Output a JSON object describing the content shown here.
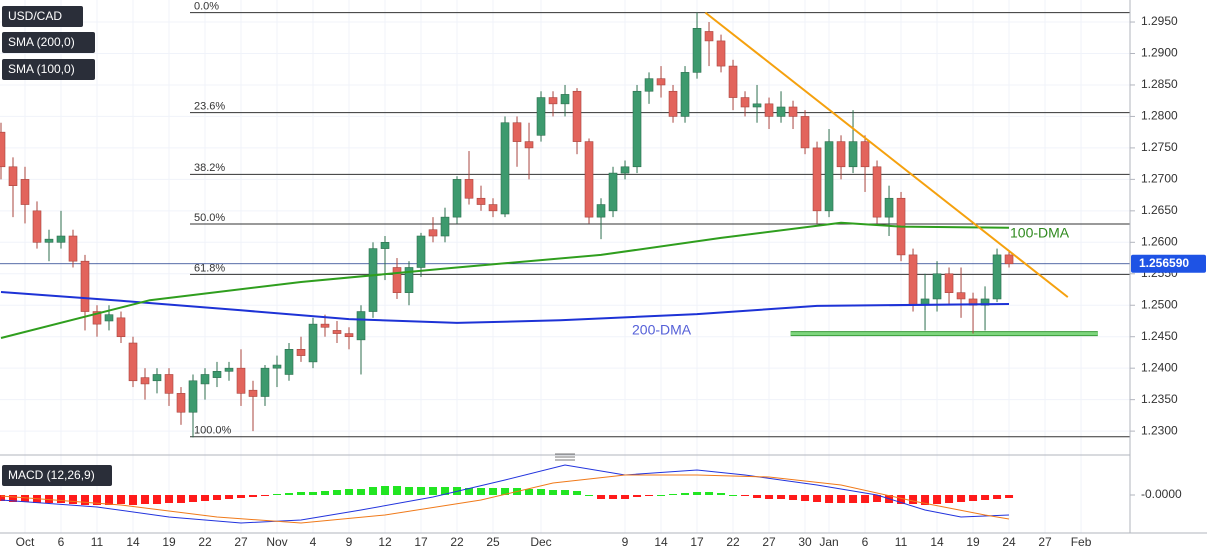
{
  "chart_data": [
    {
      "type": "candlestick",
      "categories": [
        null,
        null,
        "Oct",
        null,
        null,
        "6",
        null,
        null,
        "11",
        null,
        null,
        "14",
        null,
        null,
        "19",
        null,
        null,
        "22",
        null,
        null,
        "27",
        null,
        null,
        "Nov",
        null,
        null,
        "4",
        null,
        null,
        "9",
        null,
        null,
        "12",
        null,
        null,
        "17",
        null,
        null,
        "22",
        null,
        null,
        "25",
        null,
        null,
        null,
        "Dec",
        null,
        null,
        null,
        null,
        null,
        null,
        "9",
        null,
        null,
        "14",
        null,
        null,
        "17",
        null,
        null,
        "22",
        null,
        null,
        "27",
        null,
        null,
        "30",
        null,
        "Jan",
        null,
        null,
        "6",
        null,
        null,
        "11",
        null,
        null,
        "14",
        null,
        null,
        "19",
        null,
        null,
        "24",
        null,
        null,
        "27",
        null,
        null,
        "Feb"
      ],
      "series": [
        {
          "name": "USD/CAD",
          "up_color": "#3d9a6e",
          "down_color": "#e2645c",
          "open": [
            1.2775,
            1.272,
            1.27,
            1.265,
            1.26,
            1.26,
            1.261,
            1.257,
            1.249,
            1.2475,
            1.248,
            1.244,
            1.2385,
            1.238,
            1.239,
            1.236,
            1.233,
            1.2375,
            1.2385,
            1.2395,
            1.24,
            1.2365,
            1.2355,
            1.24,
            1.239,
            1.243,
            1.241,
            1.247,
            1.246,
            1.2455,
            1.2445,
            1.249,
            1.259,
            1.256,
            1.252,
            1.256,
            1.262,
            1.261,
            1.264,
            1.27,
            1.267,
            1.266,
            1.2645,
            1.279,
            1.276,
            1.277,
            1.283,
            1.282,
            1.284,
            1.276,
            1.264,
            1.265,
            1.271,
            1.272,
            1.284,
            1.286,
            1.284,
            1.28,
            1.287,
            1.2935,
            1.292,
            1.288,
            1.283,
            1.2815,
            1.282,
            1.28,
            1.2815,
            1.28,
            1.275,
            1.265,
            1.276,
            1.272,
            1.276,
            1.272,
            1.264,
            1.267,
            1.258,
            1.25,
            1.251,
            1.255,
            1.252,
            1.251,
            1.25,
            1.251,
            1.258,
            null,
            null,
            null,
            null,
            null,
            null
          ],
          "high": [
            1.279,
            1.2735,
            1.272,
            1.2665,
            1.262,
            1.265,
            1.262,
            1.258,
            1.25,
            1.25,
            1.249,
            1.245,
            1.24,
            1.24,
            1.24,
            1.237,
            1.239,
            1.24,
            1.241,
            1.241,
            1.243,
            1.238,
            1.2405,
            1.242,
            1.244,
            1.245,
            1.248,
            1.2485,
            1.2475,
            1.2465,
            1.25,
            1.26,
            1.261,
            1.2575,
            1.257,
            1.2615,
            1.264,
            1.2655,
            1.2705,
            1.2745,
            1.269,
            1.267,
            1.28,
            1.28,
            1.279,
            1.284,
            1.284,
            1.285,
            1.2845,
            1.2765,
            1.267,
            1.272,
            1.273,
            1.285,
            1.287,
            1.288,
            1.285,
            1.288,
            1.2965,
            1.295,
            1.293,
            1.289,
            1.284,
            1.285,
            1.283,
            1.284,
            1.2825,
            1.281,
            1.276,
            1.278,
            1.277,
            1.281,
            1.277,
            1.273,
            1.269,
            1.268,
            1.259,
            1.255,
            1.257,
            1.256,
            1.256,
            1.252,
            1.253,
            1.259,
            1.2585,
            null,
            null,
            null,
            null,
            null,
            null
          ],
          "low": [
            1.27,
            1.264,
            1.263,
            1.259,
            1.257,
            1.259,
            1.256,
            1.246,
            1.245,
            1.246,
            1.244,
            1.237,
            1.235,
            1.236,
            1.234,
            1.231,
            1.229,
            1.235,
            1.237,
            1.238,
            1.234,
            1.23,
            1.234,
            1.237,
            1.238,
            1.241,
            1.24,
            1.245,
            1.244,
            1.243,
            1.239,
            1.248,
            1.254,
            1.251,
            1.25,
            1.2545,
            1.26,
            1.26,
            1.263,
            1.266,
            1.265,
            1.264,
            1.264,
            1.272,
            1.27,
            1.276,
            1.28,
            1.28,
            1.274,
            1.263,
            1.2605,
            1.264,
            1.27,
            1.271,
            1.282,
            1.283,
            1.279,
            1.279,
            1.286,
            1.288,
            1.287,
            1.281,
            1.28,
            1.279,
            1.278,
            1.279,
            1.278,
            1.274,
            1.263,
            1.264,
            1.27,
            1.271,
            1.268,
            1.263,
            1.261,
            1.257,
            1.249,
            1.246,
            1.249,
            1.25,
            1.248,
            1.2455,
            1.246,
            1.2505,
            1.256,
            null,
            null,
            null,
            null,
            null,
            null
          ],
          "close": [
            1.272,
            1.269,
            1.266,
            1.26,
            1.2605,
            1.261,
            1.257,
            1.249,
            1.247,
            1.2485,
            1.245,
            1.238,
            1.2375,
            1.239,
            1.236,
            1.233,
            1.238,
            1.239,
            1.2395,
            1.24,
            1.236,
            1.2355,
            1.24,
            1.2405,
            1.243,
            1.242,
            1.247,
            1.2465,
            1.2455,
            1.245,
            1.249,
            1.259,
            1.26,
            1.252,
            1.256,
            1.261,
            1.261,
            1.264,
            1.27,
            1.267,
            1.266,
            1.265,
            1.279,
            1.276,
            1.275,
            1.283,
            1.282,
            1.2835,
            1.276,
            1.264,
            1.266,
            1.271,
            1.272,
            1.284,
            1.286,
            1.285,
            1.28,
            1.287,
            1.294,
            1.292,
            1.288,
            1.283,
            1.2815,
            1.282,
            1.28,
            1.2815,
            1.28,
            1.275,
            1.265,
            1.276,
            1.272,
            1.276,
            1.272,
            1.264,
            1.267,
            1.258,
            1.25,
            1.251,
            1.255,
            1.252,
            1.251,
            1.25,
            1.251,
            1.258,
            1.25659,
            null,
            null,
            null,
            null,
            null,
            null
          ]
        }
      ],
      "lines": [
        {
          "name": "SMA (200,0)",
          "color": "#1d32d6",
          "x": [
            0,
            10,
            20,
            29,
            38,
            46.6,
            58,
            68,
            84
          ],
          "values": [
            1.2521,
            1.2507,
            1.2492,
            1.2478,
            1.2472,
            1.2476,
            1.2486,
            1.2499,
            1.2502
          ]
        },
        {
          "name": "SMA (100,0)",
          "color": "#2f9e1e",
          "x": [
            0,
            12.4,
            25,
            37.4,
            50,
            60,
            70,
            75,
            84
          ],
          "values": [
            1.2448,
            1.2508,
            1.2537,
            1.2559,
            1.258,
            1.2607,
            1.2631,
            1.2625,
            1.2623
          ]
        }
      ],
      "annotations": [
        {
          "text": "100-DMA",
          "color": "#2f8a1e"
        },
        {
          "text": "200-DMA",
          "color": "#5560d8"
        }
      ],
      "trendline": {
        "color": "#f5a10e",
        "x": [
          58.7,
          88.9
        ],
        "values": [
          1.2965,
          1.2513
        ]
      },
      "support": {
        "color": "#7ed67e",
        "x": [
          65.8,
          91.4
        ],
        "values": [
          1.2455,
          1.2455
        ]
      },
      "fib_levels": [
        {
          "label": "0.0%",
          "value": 1.2965
        },
        {
          "label": "23.6%",
          "value": 1.2806
        },
        {
          "label": "38.2%",
          "value": 1.2708
        },
        {
          "label": "50.0%",
          "value": 1.2629
        },
        {
          "label": "61.8%",
          "value": 1.2549
        },
        {
          "label": "100.0%",
          "value": 1.2291
        }
      ],
      "last_price": {
        "value": 1.25659,
        "label": "1.256590"
      },
      "xlim": [
        -0.083,
        94.08
      ],
      "ylim": [
        1.227,
        1.2985
      ],
      "yticks": [
        {
          "value": 1.23,
          "label": "1.2300"
        },
        {
          "value": 1.235,
          "label": "1.2350"
        },
        {
          "value": 1.24,
          "label": "1.2400"
        },
        {
          "value": 1.245,
          "label": "1.2450"
        },
        {
          "value": 1.25,
          "label": "1.2500"
        },
        {
          "value": 1.255,
          "label": "1.2550"
        },
        {
          "value": 1.26,
          "label": "1.2600"
        },
        {
          "value": 1.265,
          "label": "1.2650"
        },
        {
          "value": 1.27,
          "label": "1.2700"
        },
        {
          "value": 1.275,
          "label": "1.2750"
        },
        {
          "value": 1.28,
          "label": "1.2800"
        },
        {
          "value": 1.285,
          "label": "1.2850"
        },
        {
          "value": 1.29,
          "label": "1.2900"
        },
        {
          "value": 1.295,
          "label": "1.2950"
        }
      ],
      "grid": true
    },
    {
      "type": "macd",
      "title": "MACD (12,26,9)",
      "up_color": "#22e522",
      "down_color": "#ff1a1a",
      "histogram": [
        -0.0006,
        -0.0007,
        -0.0007,
        -0.0008,
        -0.0008,
        -0.0008,
        -0.0009,
        -0.001,
        -0.001,
        -0.001,
        -0.0009,
        -0.001,
        -0.0009,
        -0.0009,
        -0.0008,
        -0.0008,
        -0.0007,
        -0.0006,
        -0.0005,
        -0.0004,
        -0.0003,
        -0.0002,
        -0.0001,
        0.0001,
        0.0002,
        0.0003,
        0.0003,
        0.0004,
        0.0005,
        0.0006,
        0.0006,
        0.0008,
        0.0009,
        0.0009,
        0.0008,
        0.0008,
        0.0008,
        0.0008,
        0.0008,
        0.0007,
        0.0007,
        0.0007,
        0.0007,
        0.0007,
        0.0006,
        0.0006,
        0.0005,
        0.0005,
        0.0004,
        0.0,
        -0.0004,
        -0.0004,
        -0.0004,
        -0.0002,
        -0.0001,
        0.0,
        0.0001,
        0.0002,
        0.0003,
        0.0003,
        0.0002,
        0.0,
        -0.0001,
        -0.0003,
        -0.0004,
        -0.0004,
        -0.0005,
        -0.0006,
        -0.0007,
        -0.0008,
        -0.0008,
        -0.0008,
        -0.0008,
        -0.0007,
        -0.0008,
        -0.0009,
        -0.0009,
        -0.001,
        -0.0009,
        -0.0008,
        -0.0007,
        -0.0006,
        -0.0005,
        -0.0004,
        -0.0003,
        null,
        null,
        null,
        null,
        null,
        null
      ],
      "lines": [
        {
          "color": "#2233dd",
          "x": [
            0,
            8,
            14,
            20,
            25,
            30,
            36,
            42,
            47,
            52,
            58,
            62,
            68,
            73,
            77,
            80,
            84
          ],
          "values": [
            -0.0005,
            -0.0012,
            -0.0022,
            -0.0028,
            -0.0025,
            -0.0015,
            -0.0002,
            0.0015,
            0.003,
            0.002,
            0.0025,
            0.002,
            0.001,
            0.0,
            -0.0015,
            -0.0022,
            -0.002
          ]
        },
        {
          "color": "#f07a1a",
          "x": [
            0,
            10,
            18,
            25,
            32,
            40,
            46,
            52,
            58,
            64,
            70,
            76,
            82,
            84
          ],
          "values": [
            -0.0001,
            -0.001,
            -0.0022,
            -0.0028,
            -0.002,
            -0.0005,
            0.0012,
            0.002,
            0.002,
            0.0018,
            0.001,
            -0.0006,
            -0.002,
            -0.0024
          ]
        }
      ],
      "ylim": [
        -0.0035,
        0.0033
      ],
      "yticks": [
        {
          "value": 0,
          "label": "-0.0000"
        }
      ]
    }
  ]
}
